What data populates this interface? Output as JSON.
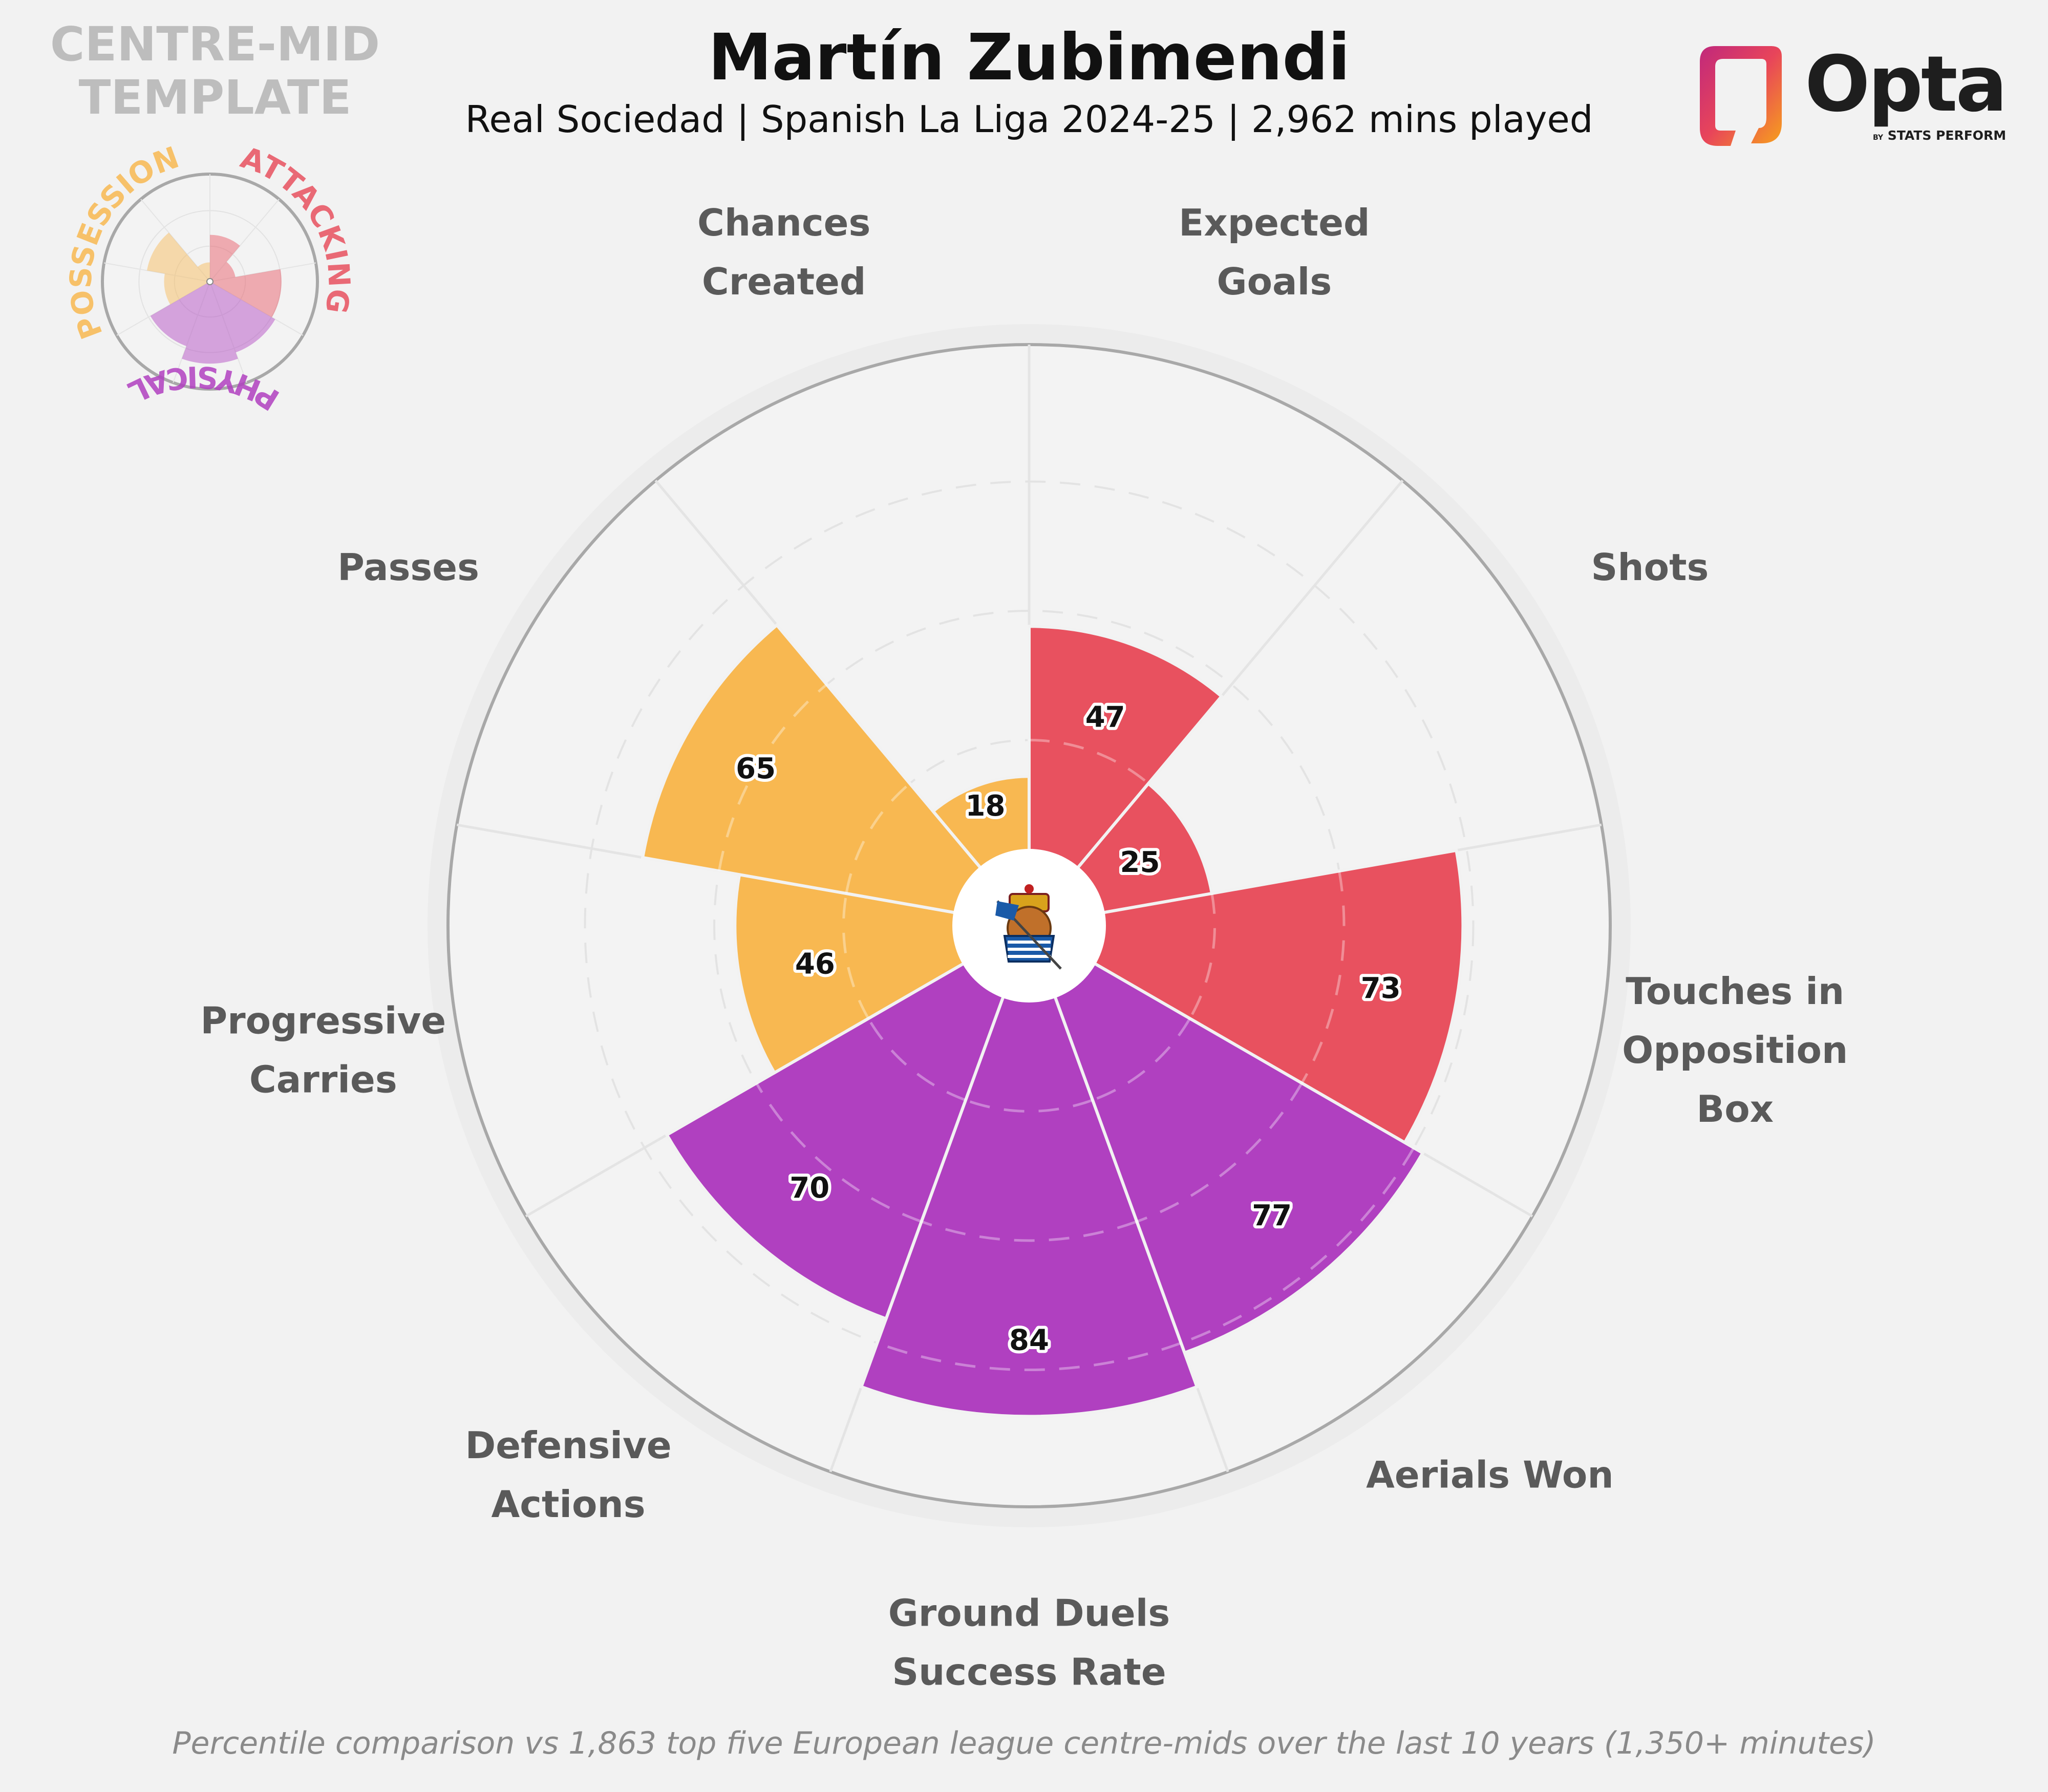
{
  "header": {
    "title": "Martín Zubimendi",
    "subtitle": "Real Sociedad | Spanish La Liga 2024-25 | 2,962 mins played",
    "template_line1": "CENTRE-MID",
    "template_line2": "TEMPLATE"
  },
  "footer": {
    "note": "Percentile comparison vs 1,863 top five European league centre-mids over the last 10 years (1,350+ minutes)"
  },
  "logo": {
    "word": "Opta",
    "by": "BY",
    "sub": "STATS PERFORM"
  },
  "categories_legend": {
    "possession": "POSSESSION",
    "attacking": "ATTACKING",
    "physical": "PHYSICAL"
  },
  "colors": {
    "attacking": "#e8515f",
    "physical": "#b040c0",
    "possession": "#f8b851",
    "background": "#f2f2f2"
  },
  "chart_data": {
    "type": "polar-bar",
    "scale": "percentile",
    "rlim": [
      0,
      100
    ],
    "metrics": [
      {
        "label": [
          "Expected",
          "Goals"
        ],
        "value": 47,
        "group": "attacking"
      },
      {
        "label": [
          "Shots"
        ],
        "value": 25,
        "group": "attacking"
      },
      {
        "label": [
          "Touches in",
          "Opposition",
          "Box"
        ],
        "value": 73,
        "group": "attacking"
      },
      {
        "label": [
          "Aerials Won"
        ],
        "value": 77,
        "group": "physical"
      },
      {
        "label": [
          "Ground Duels",
          "Success Rate"
        ],
        "value": 84,
        "group": "physical"
      },
      {
        "label": [
          "Defensive",
          "Actions"
        ],
        "value": 70,
        "group": "physical"
      },
      {
        "label": [
          "Progressive",
          "Carries"
        ],
        "value": 46,
        "group": "possession"
      },
      {
        "label": [
          "Passes"
        ],
        "value": 65,
        "group": "possession"
      },
      {
        "label": [
          "Chances",
          "Created"
        ],
        "value": 18,
        "group": "possession"
      }
    ]
  }
}
